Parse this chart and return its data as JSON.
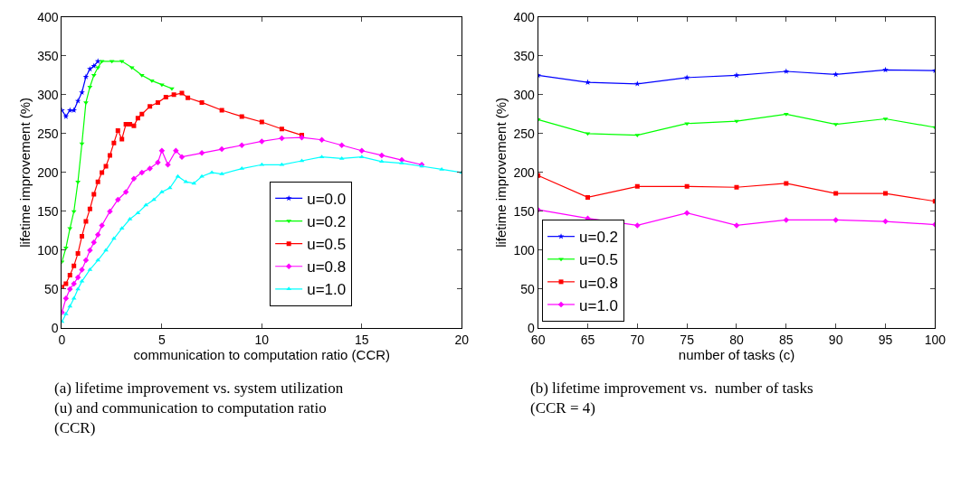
{
  "chart_data": [
    {
      "type": "line",
      "xlabel": "communication to computation ratio (CCR)",
      "ylabel": "lifetime improvement (%)",
      "xlim": [
        0,
        20
      ],
      "xticks": [
        0,
        5,
        10,
        15,
        20
      ],
      "ylim": [
        0,
        400
      ],
      "yticks": [
        0,
        50,
        100,
        150,
        200,
        250,
        300,
        350,
        400
      ],
      "legend": "bottom",
      "annotations": [
        "(a) lifetime improvement vs. system utilization (u) and communication to computation ratio (CCR)"
      ],
      "series": [
        {
          "name": "u=0.0",
          "color": "#0000ff",
          "marker": "star",
          "x": [
            0,
            0.2,
            0.4,
            0.6,
            0.8,
            1.0,
            1.2,
            1.4,
            1.6,
            1.8
          ],
          "values": [
            280,
            272,
            280,
            280,
            292,
            303,
            323,
            333,
            337,
            343
          ]
        },
        {
          "name": "u=0.2",
          "color": "#00ff00",
          "marker": "triangle-down",
          "x": [
            0,
            0.2,
            0.4,
            0.6,
            0.8,
            1.0,
            1.2,
            1.4,
            1.6,
            1.8,
            2.0,
            2.5,
            3.0,
            3.5,
            4.0,
            4.5,
            5.0,
            5.5
          ],
          "values": [
            85,
            103,
            128,
            150,
            188,
            237,
            290,
            310,
            325,
            335,
            343,
            343,
            343,
            335,
            325,
            318,
            313,
            308
          ]
        },
        {
          "name": "u=0.5",
          "color": "#ff0000",
          "marker": "square",
          "x": [
            0,
            0.2,
            0.4,
            0.6,
            0.8,
            1.0,
            1.2,
            1.4,
            1.6,
            1.8,
            2.0,
            2.2,
            2.4,
            2.6,
            2.8,
            3.0,
            3.2,
            3.4,
            3.6,
            3.8,
            4.0,
            4.4,
            4.8,
            5.2,
            5.6,
            6.0,
            6.3,
            7,
            8,
            9,
            10,
            11,
            12
          ],
          "values": [
            53,
            57,
            68,
            80,
            96,
            118,
            137,
            153,
            172,
            188,
            200,
            208,
            222,
            238,
            254,
            243,
            262,
            262,
            260,
            270,
            275,
            285,
            290,
            297,
            300,
            302,
            296,
            290,
            280,
            272,
            265,
            256,
            248
          ]
        },
        {
          "name": "u=0.8",
          "color": "#ff00ff",
          "marker": "diamond",
          "x": [
            0,
            0.2,
            0.4,
            0.6,
            0.8,
            1.0,
            1.2,
            1.4,
            1.6,
            1.8,
            2.0,
            2.4,
            2.8,
            3.2,
            3.6,
            4.0,
            4.4,
            4.8,
            5.0,
            5.3,
            5.7,
            6,
            7,
            8,
            9,
            10,
            11,
            12,
            13,
            14,
            15,
            16,
            17,
            18
          ],
          "values": [
            20,
            38,
            50,
            57,
            65,
            75,
            87,
            100,
            110,
            120,
            132,
            150,
            165,
            175,
            192,
            200,
            205,
            213,
            228,
            210,
            228,
            220,
            225,
            230,
            235,
            240,
            244,
            245,
            242,
            235,
            228,
            222,
            216,
            210
          ]
        },
        {
          "name": "u=1.0",
          "color": "#00ffff",
          "marker": "triangle",
          "x": [
            0,
            0.2,
            0.4,
            0.6,
            0.8,
            1.0,
            1.4,
            1.8,
            2.2,
            2.6,
            3.0,
            3.4,
            3.8,
            4.2,
            4.6,
            5.0,
            5.4,
            5.8,
            6.2,
            6.6,
            7,
            7.5,
            8,
            9,
            10,
            11,
            12,
            13,
            14,
            15,
            16,
            17,
            18,
            19,
            20
          ],
          "values": [
            8,
            18,
            28,
            38,
            50,
            60,
            75,
            87,
            100,
            115,
            128,
            140,
            148,
            158,
            165,
            175,
            180,
            195,
            188,
            186,
            195,
            200,
            198,
            205,
            210,
            210,
            215,
            220,
            218,
            220,
            214,
            212,
            208,
            204,
            200
          ]
        }
      ]
    },
    {
      "type": "line",
      "xlabel": "number of tasks (c)",
      "ylabel": "lifetime improvement (%)",
      "x": [
        60,
        65,
        70,
        75,
        80,
        85,
        90,
        95,
        100
      ],
      "xlim": [
        60,
        100
      ],
      "xticks": [
        60,
        65,
        70,
        75,
        80,
        85,
        90,
        95,
        100
      ],
      "ylim": [
        0,
        400
      ],
      "yticks": [
        0,
        50,
        100,
        150,
        200,
        250,
        300,
        350,
        400
      ],
      "legend": "bottom left",
      "annotations": [
        "(b) lifetime improvement vs.  number of tasks (CCR = 4)"
      ],
      "series": [
        {
          "name": "u=0.2",
          "color": "#0000ff",
          "marker": "star",
          "values": [
            325,
            316,
            314,
            322,
            325,
            330,
            326,
            332,
            331
          ]
        },
        {
          "name": "u=0.5",
          "color": "#00ff00",
          "marker": "triangle-down",
          "values": [
            268,
            250,
            248,
            263,
            266,
            275,
            262,
            269,
            258
          ]
        },
        {
          "name": "u=0.8",
          "color": "#ff0000",
          "marker": "square",
          "values": [
            196,
            168,
            182,
            182,
            181,
            186,
            173,
            173,
            163
          ]
        },
        {
          "name": "u=1.0",
          "color": "#ff00ff",
          "marker": "diamond",
          "values": [
            152,
            141,
            132,
            148,
            132,
            139,
            139,
            137,
            133
          ]
        }
      ]
    }
  ]
}
